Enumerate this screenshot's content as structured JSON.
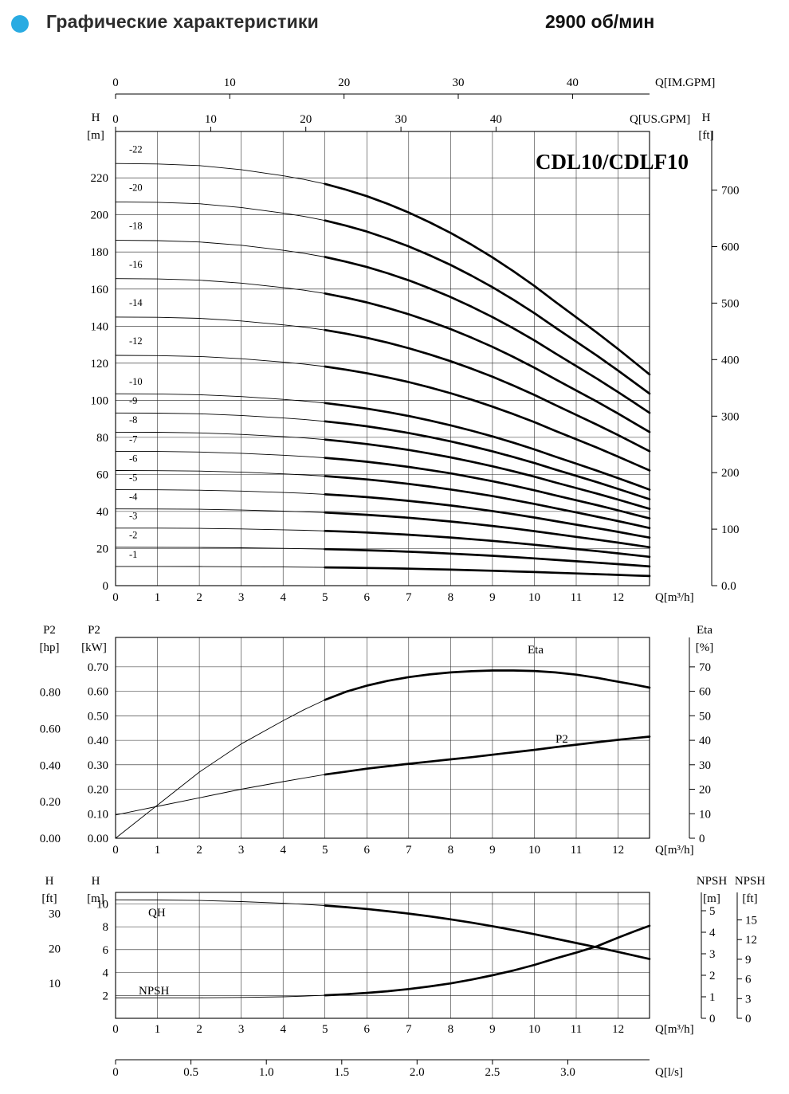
{
  "header": {
    "title": "Графические характеристики",
    "rpm": "2900 об/мин",
    "bullet_color": "#29abe2"
  },
  "colors": {
    "curve": "#000000",
    "background": "#ffffff"
  },
  "chart_data": [
    {
      "id": "hq",
      "type": "line",
      "title": "CDL10/CDLF10",
      "x_axis": {
        "label": "Q[m³/h]",
        "min": 0,
        "max": 12.75,
        "ticks": [
          0,
          1,
          2,
          3,
          4,
          5,
          6,
          7,
          8,
          9,
          10,
          11,
          12
        ]
      },
      "x_axis_top": [
        {
          "label": "Q[IM.GPM]",
          "ticks": [
            0,
            10,
            20,
            30,
            40
          ],
          "units_per_m3h": 3.6661
        },
        {
          "label": "Q[US.GPM]",
          "ticks": [
            0,
            10,
            20,
            30,
            40
          ],
          "units_per_m3h": 4.4029
        }
      ],
      "y_left": {
        "name": "H",
        "unit": "[m]",
        "min": 0,
        "max": 245,
        "grid_step": 20,
        "tick_max": 220
      },
      "y_right": {
        "name": "H",
        "unit": "[ft]",
        "ticks": [
          "0.0",
          "100",
          "200",
          "300",
          "400",
          "500",
          "600",
          "700"
        ],
        "ft_per_m": 3.2808
      },
      "q_values": [
        0,
        1,
        2,
        3,
        4,
        4.5,
        5,
        5.5,
        6,
        6.5,
        7,
        7.5,
        8,
        8.5,
        9,
        9.5,
        10,
        10.5,
        11,
        11.5,
        12,
        12.4,
        12.75
      ],
      "head_per_stage_m": [
        10.35,
        10.34,
        10.3,
        10.2,
        10.05,
        9.96,
        9.85,
        9.71,
        9.55,
        9.36,
        9.15,
        8.91,
        8.65,
        8.36,
        8.05,
        7.71,
        7.35,
        6.96,
        6.58,
        6.2,
        5.8,
        5.47,
        5.18
      ],
      "stage_curves": [
        {
          "label": "-1",
          "stages": 1
        },
        {
          "label": "-2",
          "stages": 2
        },
        {
          "label": "-3",
          "stages": 3
        },
        {
          "label": "-4",
          "stages": 4
        },
        {
          "label": "-5",
          "stages": 5
        },
        {
          "label": "-6",
          "stages": 6
        },
        {
          "label": "-7",
          "stages": 7
        },
        {
          "label": "-8",
          "stages": 8
        },
        {
          "label": "-9",
          "stages": 9
        },
        {
          "label": "-10",
          "stages": 10
        },
        {
          "label": "-12",
          "stages": 12
        },
        {
          "label": "-14",
          "stages": 14
        },
        {
          "label": "-16",
          "stages": 16
        },
        {
          "label": "-18",
          "stages": 18
        },
        {
          "label": "-20",
          "stages": 20
        },
        {
          "label": "-22",
          "stages": 22
        }
      ],
      "bold_from_q": 5
    },
    {
      "id": "power",
      "type": "line",
      "x_axis": {
        "label": "Q[m³/h]",
        "min": 0,
        "max": 12.75,
        "ticks": [
          0,
          1,
          2,
          3,
          4,
          5,
          6,
          7,
          8,
          9,
          10,
          11,
          12
        ]
      },
      "y_left_outer": {
        "name": "P2",
        "unit": "[hp]",
        "ticks": [
          "0.00",
          "0.20",
          "0.40",
          "0.60",
          "0.80"
        ],
        "hp_per_kw": 1.341
      },
      "y_left": {
        "name": "P2",
        "unit": "[kW]",
        "min": 0,
        "max": 0.82,
        "ticks": [
          "0.00",
          "0.10",
          "0.20",
          "0.30",
          "0.40",
          "0.50",
          "0.60",
          "0.70"
        ]
      },
      "y_right": {
        "name": "Eta",
        "unit": "[%]",
        "ticks": [
          0,
          10,
          20,
          30,
          40,
          50,
          60,
          70
        ]
      },
      "q_values": [
        0,
        1,
        2,
        3,
        4,
        4.5,
        5,
        5.5,
        6,
        6.5,
        7,
        7.5,
        8,
        8.5,
        9,
        9.5,
        10,
        10.5,
        11,
        11.5,
        12,
        12.4,
        12.75
      ],
      "series": [
        {
          "name": "Eta",
          "axis": "right",
          "values": [
            0,
            13.5,
            27,
            38.5,
            48,
            52.5,
            56.5,
            59.8,
            62.3,
            64.3,
            65.8,
            66.9,
            67.7,
            68.2,
            68.5,
            68.5,
            68.3,
            67.7,
            66.8,
            65.5,
            63.9,
            62.7,
            61.5
          ]
        },
        {
          "name": "P2",
          "axis": "left",
          "values": [
            0.095,
            0.13,
            0.165,
            0.2,
            0.231,
            0.246,
            0.26,
            0.272,
            0.284,
            0.294,
            0.304,
            0.313,
            0.322,
            0.331,
            0.341,
            0.351,
            0.361,
            0.372,
            0.382,
            0.392,
            0.402,
            0.409,
            0.415
          ]
        }
      ],
      "bold_from_q": 5
    },
    {
      "id": "qh-npsh",
      "type": "line",
      "x_axis": {
        "label": "Q[m³/h]",
        "min": 0,
        "max": 12.75,
        "ticks": [
          0,
          1,
          2,
          3,
          4,
          5,
          6,
          7,
          8,
          9,
          10,
          11,
          12
        ]
      },
      "x_axis_secondary": {
        "label": "Q[l/s]",
        "ticks": [
          "0",
          "0.5",
          "1.0",
          "1.5",
          "2.0",
          "2.5",
          "3.0"
        ],
        "ls_per_m3h": 0.27778
      },
      "y_left_outer": {
        "name": "H",
        "unit": "[ft]",
        "ticks": [
          10,
          20,
          30
        ],
        "ft_per_m": 3.2808
      },
      "y_left": {
        "name": "H",
        "unit": "[m]",
        "min": 0,
        "max": 11,
        "grid_step": 2,
        "tick_max": 10
      },
      "y_right": {
        "name": "NPSH",
        "unit": "[m]",
        "ticks": [
          0,
          1,
          2,
          3,
          4,
          5
        ],
        "max": 5.85
      },
      "y_right_outer": {
        "name": "NPSH",
        "unit": "[ft]",
        "ticks": [
          0,
          3,
          6,
          9,
          12,
          15
        ],
        "ft_per_m": 3.2808
      },
      "q_values": [
        0,
        1,
        2,
        3,
        4,
        4.5,
        5,
        5.5,
        6,
        6.5,
        7,
        7.5,
        8,
        8.5,
        9,
        9.5,
        10,
        10.5,
        11,
        11.5,
        12,
        12.4,
        12.75
      ],
      "series": [
        {
          "name": "QH",
          "axis": "left",
          "values": [
            10.35,
            10.34,
            10.3,
            10.2,
            10.05,
            9.96,
            9.85,
            9.71,
            9.55,
            9.36,
            9.15,
            8.91,
            8.65,
            8.36,
            8.05,
            7.71,
            7.35,
            6.96,
            6.58,
            6.2,
            5.8,
            5.47,
            5.18
          ]
        },
        {
          "name": "NPSH",
          "axis": "right",
          "values": [
            0.95,
            0.95,
            0.95,
            0.97,
            1.0,
            1.03,
            1.07,
            1.12,
            1.18,
            1.26,
            1.36,
            1.48,
            1.62,
            1.8,
            2.0,
            2.22,
            2.48,
            2.78,
            3.05,
            3.35,
            3.75,
            4.05,
            4.3
          ]
        }
      ],
      "bold_from_q": 5
    }
  ]
}
